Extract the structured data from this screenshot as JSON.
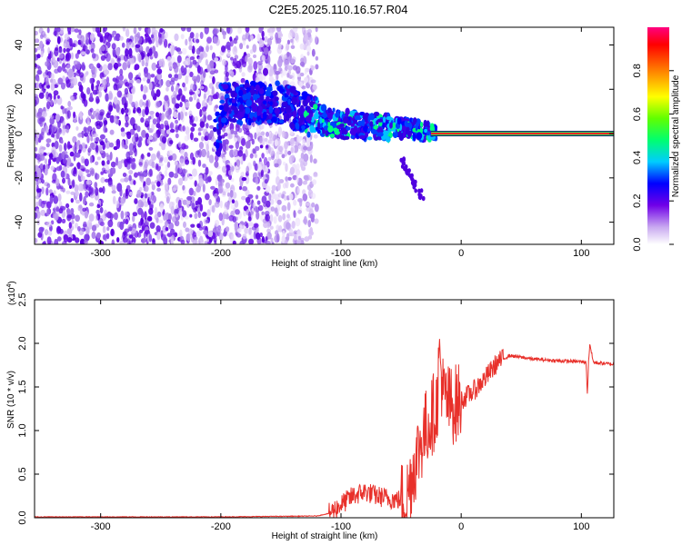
{
  "title": "C2E5.2025.110.16.57.R04",
  "chart_data": [
    {
      "type": "heatmap",
      "xlabel": "Height of straight line (km)",
      "ylabel": "Frequency (Hz)",
      "xlim": [
        -355,
        127
      ],
      "ylim": [
        -50,
        48
      ],
      "xticks": [
        -300,
        -200,
        -100,
        0,
        100
      ],
      "yticks": [
        40,
        20,
        0,
        -20,
        -40
      ],
      "colorbar": {
        "label": "Normalized spectral amplitude",
        "range": [
          0,
          1
        ],
        "ticks": [
          "0.0",
          "0.2",
          "0.4",
          "0.6",
          "0.8"
        ],
        "colors": [
          "#ffffff",
          "#a070e0",
          "#5000e0",
          "#0000ff",
          "#00ccff",
          "#00ff60",
          "#80ff00",
          "#ffff00",
          "#ff8000",
          "#ff0000",
          "#ff0080"
        ]
      },
      "trace": [
        {
          "x": -200,
          "y": 13
        },
        {
          "x": -175,
          "y": 14
        },
        {
          "x": -150,
          "y": 14
        },
        {
          "x": -130,
          "y": 9
        },
        {
          "x": -110,
          "y": 5
        },
        {
          "x": -80,
          "y": 3
        },
        {
          "x": -60,
          "y": 3
        },
        {
          "x": -40,
          "y": 2
        },
        {
          "x": -20,
          "y": 0.5
        },
        {
          "x": 0,
          "y": 0
        },
        {
          "x": 127,
          "y": 0
        }
      ],
      "grid": false
    },
    {
      "type": "line",
      "xlabel": "Height of straight line (km)",
      "ylabel": "SNR (10 * v/v)",
      "exponent_label": "(x10",
      "exponent": "4",
      "xlim": [
        -355,
        127
      ],
      "ylim": [
        0,
        2.5
      ],
      "xticks": [
        -300,
        -200,
        -100,
        0,
        100
      ],
      "yticks": [
        "0.0",
        "0.5",
        "1.0",
        "1.5",
        "2.0",
        "2.5"
      ],
      "series": [
        {
          "color": "#e8302a",
          "x": [
            -355,
            -300,
            -200,
            -120,
            -110,
            -100,
            -90,
            -80,
            -70,
            -60,
            -50,
            -45,
            -40,
            -35,
            -30,
            -25,
            -20,
            -18,
            -15,
            -10,
            -5,
            0,
            10,
            20,
            30,
            40,
            60,
            80,
            100,
            104,
            105,
            106,
            107,
            110,
            127
          ],
          "y": [
            0.01,
            0.01,
            0.01,
            0.02,
            0.05,
            0.15,
            0.25,
            0.3,
            0.25,
            0.22,
            0.2,
            0.25,
            0.55,
            0.8,
            1.0,
            1.15,
            1.3,
            1.9,
            1.4,
            1.3,
            1.3,
            1.35,
            1.45,
            1.6,
            1.78,
            1.86,
            1.82,
            1.8,
            1.79,
            1.78,
            1.4,
            1.78,
            2.0,
            1.78,
            1.76
          ]
        }
      ],
      "grid": false
    }
  ]
}
